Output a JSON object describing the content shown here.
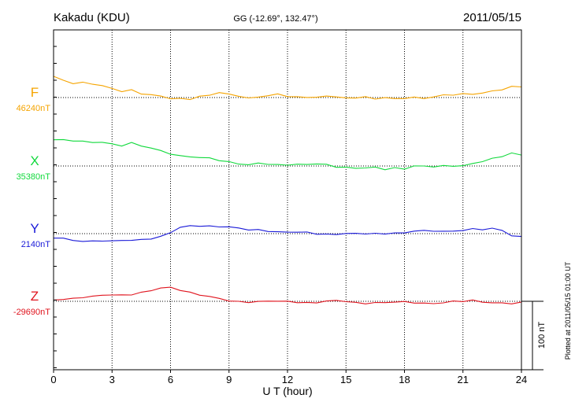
{
  "header": {
    "station": "Kakadu (KDU)",
    "coords": "GG (-12.69°, 132.47°)",
    "date": "2011/05/15"
  },
  "plotted_note": "Plotted at 2011/05/15 01:00 UT",
  "scale_label": "100 nT",
  "chart_data": {
    "type": "line",
    "title": "",
    "xlabel": "U T (hour)",
    "ylabel": "",
    "xlim": [
      0,
      24
    ],
    "xticks": [
      0,
      3,
      6,
      9,
      12,
      15,
      18,
      21,
      24
    ],
    "grid": true,
    "scale_bar_nT": 100,
    "series": [
      {
        "name": "F",
        "baseline_label": "46240nT",
        "baseline_nT": 46240,
        "color": "#f5a400",
        "x": [
          0,
          0.5,
          1,
          1.5,
          2,
          2.5,
          3,
          3.5,
          4,
          4.5,
          5,
          5.5,
          6,
          6.5,
          7,
          7.5,
          8,
          8.5,
          9,
          9.5,
          10,
          10.5,
          11,
          11.5,
          12,
          12.5,
          13,
          13.5,
          14,
          14.5,
          15,
          15.5,
          16,
          16.5,
          17,
          17.5,
          18,
          18.5,
          19,
          19.5,
          20,
          20.5,
          21,
          21.5,
          22,
          22.5,
          23,
          23.5,
          24
        ],
        "y": [
          46271,
          46266,
          46262,
          46262,
          46259,
          46256,
          46253,
          46250,
          46252,
          46246,
          46243,
          46241,
          46238,
          46239,
          46239,
          46242,
          46243,
          46246,
          46244,
          46243,
          46240,
          46242,
          46242,
          46244,
          46241,
          46241,
          46242,
          46241,
          46242,
          46240,
          46238,
          46240,
          46242,
          46239,
          46240,
          46237,
          46238,
          46240,
          46240,
          46242,
          46244,
          46243,
          46244,
          46245,
          46247,
          46251,
          46252,
          46255,
          46255
        ]
      },
      {
        "name": "X",
        "baseline_label": "35380nT",
        "baseline_nT": 35380,
        "color": "#11d93c",
        "x": [
          0,
          0.5,
          1,
          1.5,
          2,
          2.5,
          3,
          3.5,
          4,
          4.5,
          5,
          5.5,
          6,
          6.5,
          7,
          7.5,
          8,
          8.5,
          9,
          9.5,
          10,
          10.5,
          11,
          11.5,
          12,
          12.5,
          13,
          13.5,
          14,
          14.5,
          15,
          15.5,
          16,
          16.5,
          17,
          17.5,
          18,
          18.5,
          19,
          19.5,
          20,
          20.5,
          21,
          21.5,
          22,
          22.5,
          23,
          23.5,
          24
        ],
        "y": [
          35420,
          35418,
          35416,
          35415,
          35414,
          35416,
          35413,
          35410,
          35413,
          35408,
          35406,
          35403,
          35399,
          35395,
          35393,
          35391,
          35391,
          35389,
          35387,
          35384,
          35381,
          35383,
          35382,
          35382,
          35383,
          35383,
          35382,
          35382,
          35381,
          35379,
          35379,
          35378,
          35377,
          35377,
          35374,
          35377,
          35377,
          35381,
          35380,
          35378,
          35379,
          35380,
          35381,
          35385,
          35387,
          35390,
          35393,
          35398,
          35397
        ]
      },
      {
        "name": "Y",
        "baseline_label": "2140nT",
        "baseline_nT": 2140,
        "color": "#1a1ad8",
        "x": [
          0,
          0.5,
          1,
          1.5,
          2,
          2.5,
          3,
          3.5,
          4,
          4.5,
          5,
          5.5,
          6,
          6.5,
          7,
          7.5,
          8,
          8.5,
          9,
          9.5,
          10,
          10.5,
          11,
          11.5,
          12,
          12.5,
          13,
          13.5,
          14,
          14.5,
          15,
          15.5,
          16,
          16.5,
          17,
          17.5,
          18,
          18.5,
          19,
          19.5,
          20,
          20.5,
          21,
          21.5,
          22,
          22.5,
          23,
          23.5,
          24
        ],
        "y": [
          2133,
          2132,
          2130,
          2130,
          2130,
          2130,
          2128,
          2129,
          2130,
          2132,
          2134,
          2136,
          2141,
          2148,
          2151,
          2152,
          2152,
          2151,
          2149,
          2147,
          2145,
          2146,
          2145,
          2143,
          2142,
          2141,
          2141,
          2140,
          2140,
          2140,
          2140,
          2139,
          2139,
          2140,
          2141,
          2142,
          2141,
          2143,
          2143,
          2144,
          2144,
          2145,
          2145,
          2146,
          2145,
          2147,
          2146,
          2138,
          2136
        ]
      },
      {
        "name": "Z",
        "baseline_label": "-29690nT",
        "baseline_nT": -29690,
        "color": "#e0141e",
        "x": [
          0,
          0.5,
          1,
          1.5,
          2,
          2.5,
          3,
          3.5,
          4,
          4.5,
          5,
          5.5,
          6,
          6.5,
          7,
          7.5,
          8,
          8.5,
          9,
          9.5,
          10,
          10.5,
          11,
          11.5,
          12,
          12.5,
          13,
          13.5,
          14,
          14.5,
          15,
          15.5,
          16,
          16.5,
          17,
          17.5,
          18,
          18.5,
          19,
          19.5,
          20,
          20.5,
          21,
          21.5,
          22,
          22.5,
          23,
          23.5,
          24
        ],
        "y": [
          -29688,
          -29686,
          -29685,
          -29684,
          -29684,
          -29682,
          -29681,
          -29680,
          -29679,
          -29677,
          -29675,
          -29672,
          -29670,
          -29673,
          -29676,
          -29680,
          -29684,
          -29687,
          -29690,
          -29690,
          -29690,
          -29690,
          -29690,
          -29691,
          -29691,
          -29691,
          -29691,
          -29691,
          -29690,
          -29690,
          -29691,
          -29692,
          -29692,
          -29691,
          -29692,
          -29692,
          -29692,
          -29692,
          -29692,
          -29692,
          -29692,
          -29691,
          -29691,
          -29689,
          -29690,
          -29691,
          -29692,
          -29694,
          -29693
        ]
      }
    ]
  }
}
